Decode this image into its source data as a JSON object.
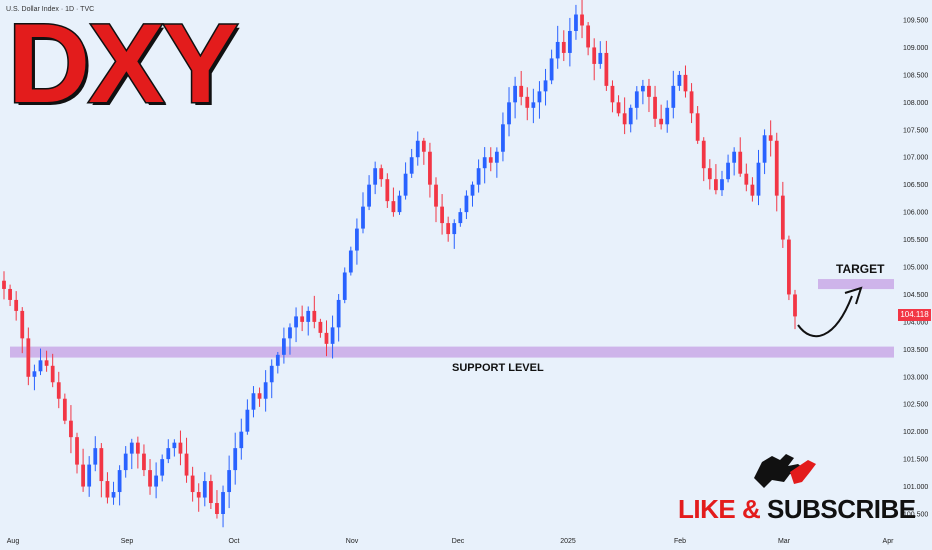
{
  "header": {
    "source": "U.S. Dollar Index · 1D · TVC"
  },
  "title": {
    "ticker": "DXY"
  },
  "annotations": {
    "target": "TARGET",
    "support": "SUPPORT LEVEL",
    "cta_like": "LIKE",
    "cta_amp": "&",
    "cta_subscribe": "SUBSCRIBE"
  },
  "colors": {
    "background": "#e8f1fb",
    "up": "#2962ff",
    "down": "#f23645",
    "zone": "#c9a9e6",
    "title_red": "#e31c1c",
    "price_badge": "#f23645"
  },
  "icons": {
    "logo": "bull-bear-icon",
    "arrow": "curved-arrow-icon"
  },
  "price_badge": "104.118",
  "chart_data": {
    "type": "candlestick",
    "title": "",
    "ylim": [
      100.25,
      109.75
    ],
    "yticks": [
      "109.500",
      "109.000",
      "108.500",
      "108.000",
      "107.500",
      "107.000",
      "106.500",
      "106.000",
      "105.500",
      "105.000",
      "104.500",
      "104.000",
      "103.500",
      "103.000",
      "102.500",
      "102.000",
      "101.500",
      "101.000",
      "100.500"
    ],
    "xticks": [
      "Aug",
      "Sep",
      "Oct",
      "Nov",
      "Dec",
      "2025",
      "Feb",
      "Mar",
      "Apr"
    ],
    "last_price": 104.118,
    "support_zone": [
      103.35,
      103.55
    ],
    "target_zone": [
      104.68,
      104.78
    ],
    "projection": "bounce from support toward target",
    "closes": [
      104.6,
      104.4,
      104.2,
      103.7,
      103.0,
      103.1,
      103.3,
      103.2,
      102.9,
      102.6,
      102.2,
      101.9,
      101.4,
      101.0,
      101.4,
      101.7,
      101.1,
      100.8,
      100.9,
      101.3,
      101.6,
      101.8,
      101.6,
      101.3,
      101.0,
      101.2,
      101.5,
      101.7,
      101.8,
      101.6,
      101.2,
      100.9,
      100.8,
      101.1,
      100.7,
      100.5,
      100.9,
      101.3,
      101.7,
      102.0,
      102.4,
      102.7,
      102.6,
      102.9,
      103.2,
      103.4,
      103.7,
      103.9,
      104.1,
      104.0,
      104.2,
      104.0,
      103.8,
      103.6,
      103.9,
      104.4,
      104.9,
      105.3,
      105.7,
      106.1,
      106.5,
      106.8,
      106.6,
      106.2,
      106.0,
      106.3,
      106.7,
      107.0,
      107.3,
      107.1,
      106.5,
      106.1,
      105.8,
      105.6,
      105.8,
      106.0,
      106.3,
      106.5,
      106.8,
      107.0,
      106.9,
      107.1,
      107.6,
      108.0,
      108.3,
      108.1,
      107.9,
      108.0,
      108.2,
      108.4,
      108.8,
      109.1,
      108.9,
      109.3,
      109.6,
      109.4,
      109.0,
      108.7,
      108.9,
      108.3,
      108.0,
      107.8,
      107.6,
      107.9,
      108.2,
      108.3,
      108.1,
      107.7,
      107.6,
      107.9,
      108.3,
      108.5,
      108.2,
      107.8,
      107.3,
      106.8,
      106.6,
      106.4,
      106.6,
      106.9,
      107.1,
      106.7,
      106.5,
      106.3,
      106.9,
      107.4,
      107.3,
      106.3,
      105.5,
      104.5,
      104.1
    ]
  }
}
